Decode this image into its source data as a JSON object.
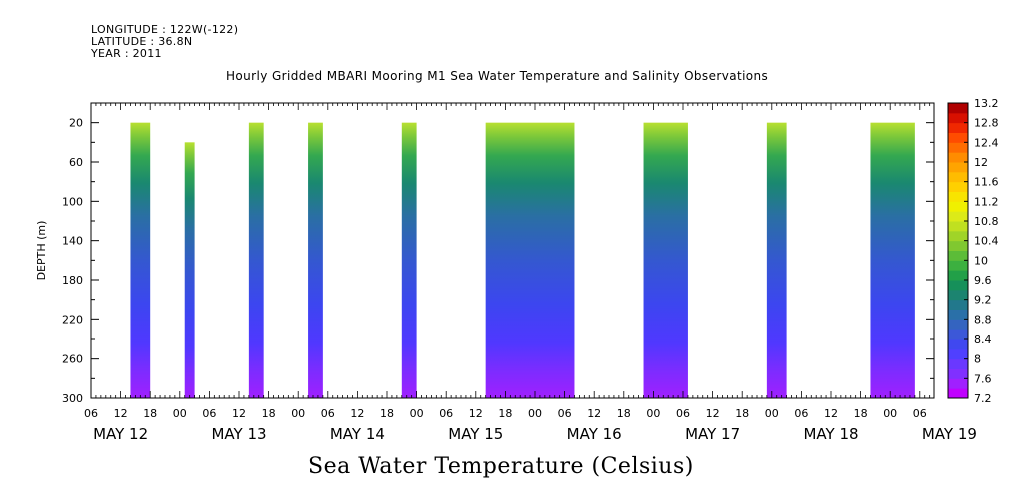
{
  "header": {
    "longitude": "LONGITUDE : 122W(-122)",
    "latitude": "LATITUDE : 36.8N",
    "year": "YEAR : 2011"
  },
  "title": "Hourly Gridded MBARI Mooring M1 Sea Water Temperature and Salinity Observations",
  "caption": "Sea Water Temperature (Celsius)",
  "chart_data": {
    "type": "heatmap",
    "ylabel": "DEPTH (m)",
    "y_ticks": [
      20,
      60,
      100,
      140,
      180,
      220,
      260,
      300
    ],
    "ylim": [
      300,
      0
    ],
    "x_hour_ticks": [
      "06",
      "12",
      "18",
      "00",
      "06",
      "12",
      "18",
      "00",
      "06",
      "12",
      "18",
      "00",
      "06",
      "12",
      "18",
      "00",
      "06",
      "12",
      "18",
      "00",
      "06",
      "12",
      "18",
      "00",
      "06",
      "12",
      "18",
      "00",
      "06"
    ],
    "x_day_labels": [
      "MAY 12",
      "MAY 13",
      "MAY 14",
      "MAY 15",
      "MAY 16",
      "MAY 17",
      "MAY 18",
      "MAY 19"
    ],
    "colorbar": {
      "levels": [
        7.2,
        7.4,
        7.6,
        7.8,
        8,
        8.2,
        8.4,
        8.6,
        8.8,
        9,
        9.2,
        9.4,
        9.6,
        9.8,
        10,
        10.2,
        10.4,
        10.6,
        10.8,
        11,
        11.2,
        11.4,
        11.6,
        11.8,
        12,
        12.2,
        12.4,
        12.6,
        12.8,
        13,
        13.2
      ],
      "labels": [
        "7.2",
        "7.6",
        "8",
        "8.4",
        "8.8",
        "9.2",
        "9.6",
        "10",
        "10.4",
        "10.8",
        "11.2",
        "11.6",
        "12",
        "12.4",
        "12.8",
        "13.2"
      ]
    },
    "segments": [
      {
        "start": "May 12 14:00",
        "end": "May 12 18:00",
        "top_depth": 20
      },
      {
        "start": "May 13 01:00",
        "end": "May 13 03:00",
        "top_depth": 40
      },
      {
        "start": "May 13 14:00",
        "end": "May 13 17:00",
        "top_depth": 20
      },
      {
        "start": "May 14 02:00",
        "end": "May 14 05:00",
        "top_depth": 20
      },
      {
        "start": "May 14 21:00",
        "end": "May 15 00:00",
        "top_depth": 20
      },
      {
        "start": "May 15 14:00",
        "end": "May 16 08:00",
        "top_depth": 20
      },
      {
        "start": "May 16 22:00",
        "end": "May 17 07:00",
        "top_depth": 20
      },
      {
        "start": "May 17 23:00",
        "end": "May 18 03:00",
        "top_depth": 20
      },
      {
        "start": "May 18 20:00",
        "end": "May 19 05:00",
        "top_depth": 20
      }
    ]
  }
}
